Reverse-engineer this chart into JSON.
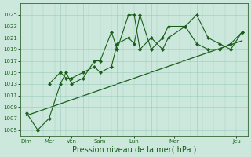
{
  "background_color": "#cce8dd",
  "grid_color": "#99ccbb",
  "line_color": "#1a5e1a",
  "xlabel": "Pression niveau de la mer( hPa )",
  "xlabel_fontsize": 7.0,
  "tick_color": "#1a5e1a",
  "tick_labelsize": 5.0,
  "ylim": [
    1004,
    1027
  ],
  "yticks": [
    1005,
    1007,
    1009,
    1011,
    1013,
    1015,
    1017,
    1019,
    1021,
    1023,
    1025
  ],
  "xlim": [
    0,
    20
  ],
  "xtick_pos": [
    0.5,
    2.5,
    4.5,
    7.0,
    10.0,
    13.5,
    19.0
  ],
  "xtick_lab": [
    "Dim",
    "Mer",
    "Ven",
    "Sam",
    "Lun",
    "Mar",
    "Jeu"
  ],
  "vline_pos": [
    1.5,
    3.5,
    5.5,
    8.5,
    11.5,
    15.5
  ],
  "series1_x": [
    0.5,
    1.5,
    2.5,
    3.5,
    4.0,
    4.5,
    5.5,
    6.5,
    7.0,
    8.0,
    8.5,
    9.5,
    10.0,
    10.5,
    11.5,
    12.5,
    13.0,
    14.5,
    15.5,
    16.5,
    17.5,
    18.5,
    19.5
  ],
  "series1_y": [
    1008,
    1005,
    1007,
    1013,
    1015,
    1013,
    1014,
    1017,
    1017,
    1022,
    1019,
    1025,
    1025,
    1019,
    1021,
    1019,
    1021,
    1023,
    1025,
    1021,
    1020,
    1019,
    1022
  ],
  "series2_x": [
    2.5,
    3.5,
    4.0,
    4.5,
    5.5,
    6.5,
    7.0,
    8.0,
    8.5,
    9.5,
    10.0,
    10.5,
    11.5,
    12.5,
    13.0,
    14.5,
    15.5,
    16.5,
    17.5,
    18.5,
    19.5
  ],
  "series2_y": [
    1013,
    1015,
    1014,
    1014,
    1015,
    1016,
    1015,
    1016,
    1020,
    1021,
    1020,
    1025,
    1019,
    1021,
    1023,
    1023,
    1020,
    1019,
    1019,
    1020,
    1022
  ],
  "trend_x": [
    0.5,
    19.5
  ],
  "trend_y": [
    1007.5,
    1020.5
  ],
  "figsize": [
    3.2,
    2.0
  ],
  "dpi": 100
}
